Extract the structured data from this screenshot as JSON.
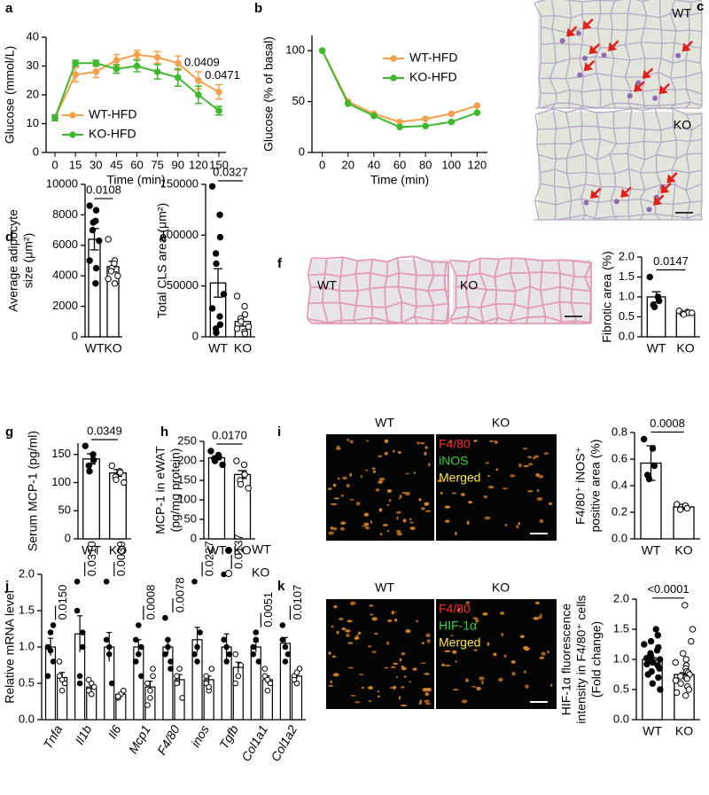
{
  "chart_data": [
    {
      "panel": "a",
      "type": "line",
      "categories": [
        "0",
        "15",
        "30",
        "45",
        "60",
        "75",
        "90",
        "120",
        "150"
      ],
      "xlabel": "Time (min)",
      "ylabel": "Glucose (mmol/L)",
      "ylim": [
        0,
        40
      ],
      "yticks": [
        0,
        10,
        20,
        30,
        40
      ],
      "series": [
        {
          "name": "WT-HFD",
          "color": "#f5a04a",
          "values": [
            12,
            27,
            28,
            32,
            34,
            33,
            31,
            25,
            21
          ],
          "errors": [
            1,
            2.5,
            2,
            2,
            1.5,
            2,
            2.5,
            3,
            2.5
          ]
        },
        {
          "name": "KO-HFD",
          "color": "#3cba2c",
          "values": [
            12,
            31,
            31,
            29,
            30,
            28,
            26,
            20,
            14.5
          ],
          "errors": [
            1,
            1,
            1,
            1.5,
            2,
            2.5,
            3,
            3,
            1.5
          ]
        }
      ],
      "annotations": [
        "0.0409",
        "0.0471"
      ]
    },
    {
      "panel": "b",
      "type": "line",
      "x": [
        0,
        20,
        40,
        60,
        80,
        100,
        120
      ],
      "xlim": [
        -8,
        128
      ],
      "xticks": [
        0,
        20,
        40,
        60,
        80,
        100,
        120
      ],
      "xlabel": "Time (min)",
      "ylabel": "Glucose (% of basal)",
      "ylim": [
        0,
        115
      ],
      "yticks": [
        0,
        50,
        100
      ],
      "series": [
        {
          "name": "WT-HFD",
          "color": "#f5a04a",
          "values": [
            100,
            50,
            38,
            30,
            33,
            38,
            46
          ]
        },
        {
          "name": "KO-HFD",
          "color": "#3cba2c",
          "values": [
            100,
            48,
            36,
            25,
            26,
            30,
            39
          ]
        }
      ]
    },
    {
      "panel": "c",
      "type": "image",
      "style": "he",
      "labels": [
        "WT",
        "KO"
      ]
    },
    {
      "type": "dotbar",
      "panel": "d",
      "categories": [
        "WT",
        "KO"
      ],
      "ylabel": [
        "Average adipocyte",
        "size (μm²)"
      ],
      "ylim": [
        0,
        10000
      ],
      "yticks": [
        0,
        2000,
        4000,
        6000,
        8000,
        10000
      ],
      "values": [
        6400,
        4600
      ],
      "errors": [
        700,
        350
      ],
      "points": [
        [
          8600,
          8300,
          7600,
          7500,
          7000,
          6300,
          5000,
          4500,
          3500
        ],
        [
          6400,
          5000,
          4800,
          4500,
          4300,
          4000,
          3800,
          3500
        ]
      ],
      "annotation": "0.0108"
    },
    {
      "type": "dotbar",
      "panel": "e",
      "categories": [
        "WT",
        "KO"
      ],
      "ylabel": [
        "Total CLS area (μm²)"
      ],
      "ylim": [
        0,
        150000
      ],
      "yticks": [
        0,
        50000,
        100000,
        150000
      ],
      "values": [
        53000,
        15000
      ],
      "errors": [
        14000,
        4500
      ],
      "points": [
        [
          148000,
          120000,
          98000,
          82000,
          72000,
          42000,
          28000,
          20000,
          12000,
          8000,
          4000
        ],
        [
          40000,
          30000,
          22000,
          18000,
          15000,
          10000,
          8000,
          5000,
          3000
        ]
      ],
      "annotation": "0.0327"
    },
    {
      "panel": "f",
      "type": "image",
      "style": "sirius",
      "labels": [
        "WT",
        "KO"
      ]
    },
    {
      "type": "dotbar",
      "categories": [
        "WT",
        "KO"
      ],
      "ylabel": [
        "Fibrotic area (%)"
      ],
      "ylim": [
        0,
        2.0
      ],
      "yticks": [
        {
          "value": 0,
          "label": "0.0"
        },
        0.5,
        {
          "value": 1,
          "label": "1.0"
        },
        1.5,
        {
          "value": 2,
          "label": "2.0"
        }
      ],
      "values": [
        1.0,
        0.6
      ],
      "errors": [
        0.13,
        0.03
      ],
      "points": [
        [
          1.5,
          1.0,
          0.9,
          0.8,
          0.75
        ],
        [
          0.65,
          0.62,
          0.6,
          0.58,
          0.56,
          0.6
        ]
      ],
      "annotation": "0.0147"
    },
    {
      "type": "dotbar",
      "panel": "g",
      "categories": [
        "WT",
        "KO"
      ],
      "ylabel": [
        "Serum MCP-1 (pg/ml)"
      ],
      "ylim": [
        0,
        170
      ],
      "yticks": [
        0,
        50,
        100,
        150
      ],
      "values": [
        142,
        117
      ],
      "errors": [
        9,
        6
      ],
      "points": [
        [
          165,
          150,
          140,
          130,
          120
        ],
        [
          130,
          120,
          118,
          110,
          105,
          100
        ]
      ],
      "annotation": "0.0349"
    },
    {
      "type": "dotbar",
      "panel": "h",
      "categories": [
        "WT",
        "KO"
      ],
      "ylabel": [
        "MCP-1 in eWAT",
        "(pg/mg protein)"
      ],
      "ylim": [
        0,
        250
      ],
      "yticks": [
        0,
        50,
        100,
        150,
        200,
        250
      ],
      "values": [
        208,
        165
      ],
      "errors": [
        5,
        10
      ],
      "points": [
        [
          225,
          215,
          210,
          205,
          200,
          190
        ],
        [
          200,
          190,
          165,
          150,
          140,
          130
        ]
      ],
      "annotation": "0.0170"
    },
    {
      "panel": "i",
      "type": "image",
      "style": "fluor",
      "labels": [
        "WT",
        "KO"
      ],
      "channels": [
        {
          "name": "F4/80",
          "color": "#ff2a2a"
        },
        {
          "name": "iNOS",
          "color": "#33d33a"
        },
        {
          "name": "Merged",
          "color": "#ffe640"
        }
      ]
    },
    {
      "type": "dotbar",
      "categories": [
        "WT",
        "KO"
      ],
      "ylabel": [
        "F4/80⁺ iNOS⁺",
        "positive area (%)"
      ],
      "ylim": [
        0,
        0.8
      ],
      "yticks": [
        {
          "value": 0,
          "label": "0.0"
        },
        0.2,
        0.4,
        0.6,
        0.8
      ],
      "values": [
        0.57,
        0.24
      ],
      "errors": [
        0.13,
        0.02
      ],
      "points": [
        [
          0.75,
          0.68,
          0.55,
          0.48,
          0.45
        ],
        [
          0.26,
          0.25,
          0.23,
          0.22
        ]
      ],
      "annotation": "0.0008"
    },
    {
      "panel": "j",
      "type": "groupbar",
      "categories": [
        "Tnfa",
        "Il1b",
        "Il6",
        "Mcp1",
        "F4/80",
        "inos",
        "Tgfb",
        "Col1a1",
        "Col1a2"
      ],
      "ylabel": "Relative mRNA level",
      "ylim": [
        0,
        2.0
      ],
      "yticks": [
        {
          "value": 0,
          "label": "0.0"
        },
        0.5,
        {
          "value": 1,
          "label": "1.0"
        },
        1.5,
        {
          "value": 2,
          "label": "2.0"
        }
      ],
      "series": [
        {
          "name": "WT",
          "values": [
            1.0,
            1.18,
            1.0,
            1.0,
            1.0,
            1.1,
            1.0,
            1.0,
            1.05
          ],
          "errors": [
            0.12,
            0.25,
            0.2,
            0.1,
            0.1,
            0.17,
            0.18,
            0.07,
            0.08
          ],
          "points": [
            [
              1.0,
              1.2,
              0.8,
              0.6,
              0.95,
              1.3
            ],
            [
              1.9,
              0.6,
              1.0,
              1.5,
              0.5,
              1.2
            ],
            [
              1.9,
              0.9,
              0.5,
              1.1,
              1.0
            ],
            [
              1.1,
              0.9,
              1.0,
              0.8,
              1.3,
              0.6
            ],
            [
              1.4,
              1.0,
              0.8,
              0.9,
              1.1,
              0.7
            ],
            [
              1.9,
              1.0,
              1.2,
              0.9,
              0.8
            ],
            [
              2.0,
              1.0,
              0.9,
              1.1,
              0.8
            ],
            [
              1.0,
              1.2,
              0.8,
              0.9,
              1.1
            ],
            [
              1.3,
              1.0,
              0.9,
              1.1,
              0.8
            ]
          ]
        },
        {
          "name": "KO",
          "values": [
            0.58,
            0.45,
            0.35,
            0.45,
            0.55,
            0.55,
            0.72,
            0.55,
            0.6
          ],
          "errors": [
            0.07,
            0.04,
            0.02,
            0.08,
            0.07,
            0.05,
            0.07,
            0.05,
            0.03
          ],
          "points": [
            [
              0.6,
              0.4,
              0.5,
              0.8,
              0.55
            ],
            [
              0.4,
              0.5,
              0.45,
              0.55,
              0.35
            ],
            [
              0.3,
              0.35,
              0.4,
              0.32
            ],
            [
              0.5,
              0.3,
              0.7,
              0.2,
              0.4,
              0.6
            ],
            [
              0.5,
              0.7,
              0.3,
              0.6
            ],
            [
              0.6,
              0.4,
              0.7,
              0.5,
              0.45
            ],
            [
              0.9,
              0.6,
              0.75,
              0.5
            ],
            [
              0.6,
              0.4,
              0.5,
              0.7,
              0.55
            ],
            [
              0.6,
              0.5,
              0.7,
              0.55,
              0.65
            ]
          ]
        }
      ],
      "annotations": [
        "0.0150",
        "0.0310",
        "0.0039",
        "0.0008",
        "0.0078",
        "0.0227",
        "0.0137",
        "0.0051",
        "0.0107"
      ]
    },
    {
      "panel": "k",
      "type": "image",
      "style": "fluor",
      "labels": [
        "WT",
        "KO"
      ],
      "channels": [
        {
          "name": "F4/80",
          "color": "#ff2a2a"
        },
        {
          "name": "HIF-1α",
          "color": "#33d33a"
        },
        {
          "name": "Merged",
          "color": "#ffe640"
        }
      ]
    },
    {
      "type": "dotbar",
      "categories": [
        "WT",
        "KO"
      ],
      "ylabel": [
        "HIF-1α fluorescence",
        "intensity in F4/80⁺ cells",
        "(Fold change)"
      ],
      "ylim": [
        0,
        2.0
      ],
      "yticks": [
        {
          "value": 0,
          "label": "0.0"
        },
        0.5,
        {
          "value": 1,
          "label": "1.0"
        },
        1.5,
        {
          "value": 2,
          "label": "2.0"
        }
      ],
      "values": [
        1.0,
        0.75
      ],
      "errors": [
        0.03,
        0.03
      ],
      "points": [
        [
          1.5,
          1.4,
          1.3,
          1.25,
          1.2,
          1.15,
          1.1,
          1.08,
          1.05,
          1.02,
          1.0,
          0.98,
          0.95,
          0.92,
          0.9,
          0.85,
          0.8,
          0.75,
          0.7,
          0.6,
          0.5
        ],
        [
          1.9,
          1.5,
          1.3,
          1.1,
          1.0,
          0.95,
          0.9,
          0.85,
          0.8,
          0.78,
          0.75,
          0.72,
          0.7,
          0.68,
          0.65,
          0.6,
          0.55,
          0.5,
          0.45,
          0.4
        ]
      ],
      "annotation": "<0.0001"
    }
  ]
}
